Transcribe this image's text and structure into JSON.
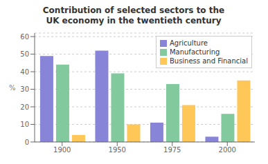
{
  "chart_data": {
    "type": "bar",
    "title": "Contribution of selected sectors to the\nUK economy in the twentieth century",
    "categories": [
      "1900",
      "1950",
      "1975",
      "2000"
    ],
    "series": [
      {
        "name": "Agriculture",
        "values": [
          49,
          52,
          11,
          3
        ]
      },
      {
        "name": "Manufacturing",
        "values": [
          44,
          39,
          33,
          16
        ]
      },
      {
        "name": "Business and Financial",
        "values": [
          4,
          10,
          21,
          35
        ]
      }
    ],
    "ylabel": "%",
    "ylim": [
      0,
      62
    ],
    "yticks": [
      0,
      10,
      20,
      30,
      40,
      50,
      60
    ],
    "grid": true,
    "legend": "upper-right"
  }
}
